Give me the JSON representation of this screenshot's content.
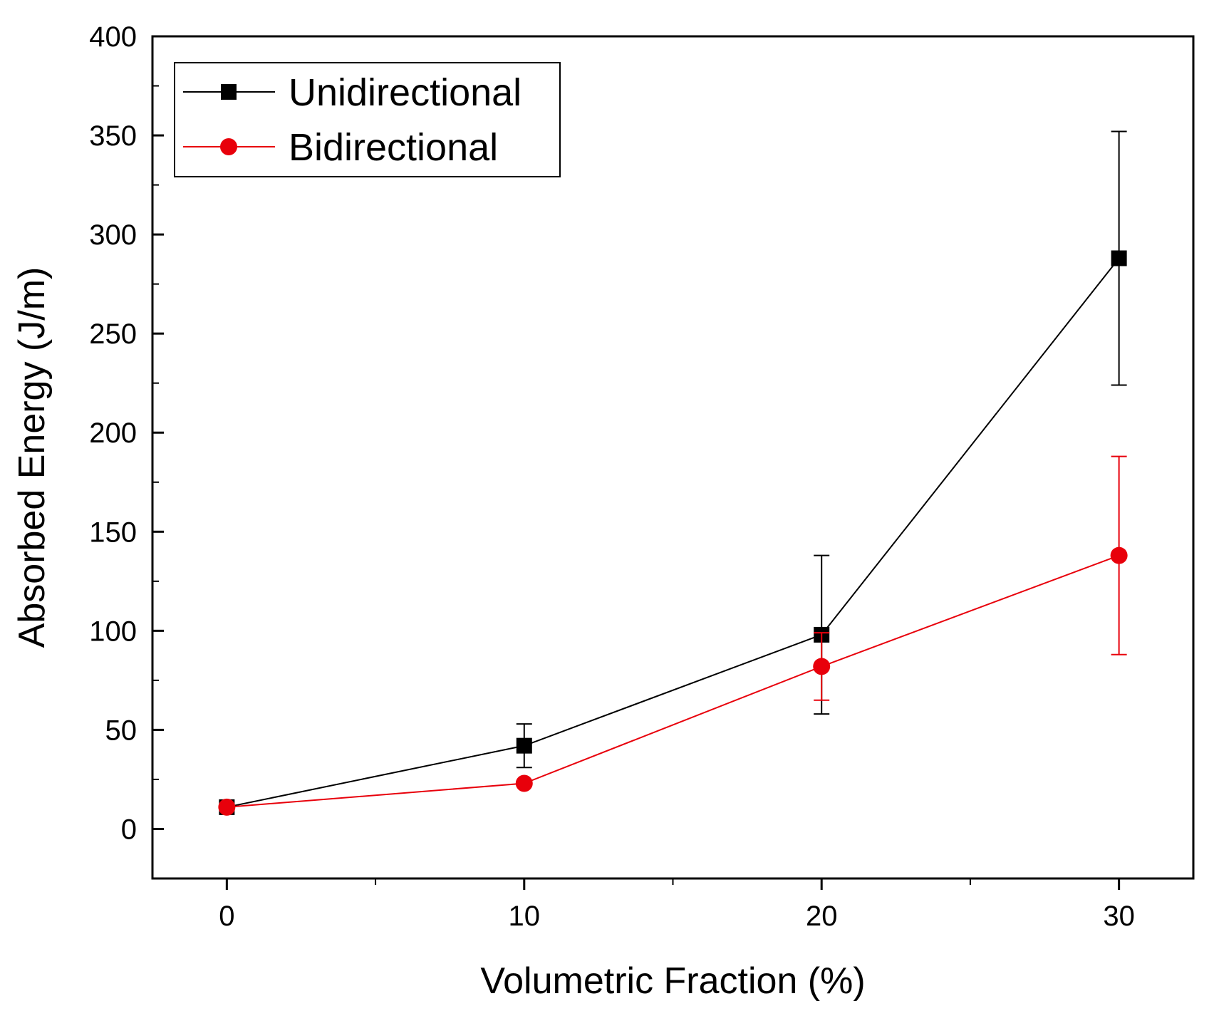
{
  "chart_data": {
    "type": "line",
    "title": "",
    "xlabel": "Volumetric Fraction (%)",
    "ylabel": "Absorbed Energy (J/m)",
    "xlim": [
      -2.5,
      32.5
    ],
    "ylim": [
      -25,
      400
    ],
    "xticks": [
      0,
      10,
      20,
      30
    ],
    "yticks": [
      0,
      50,
      100,
      150,
      200,
      250,
      300,
      350,
      400
    ],
    "legend_position": "top-left",
    "grid": false,
    "series": [
      {
        "name": "Unidirectional",
        "color": "#000000",
        "marker": "square",
        "x": [
          0,
          10,
          20,
          30
        ],
        "y": [
          11,
          42,
          98,
          288
        ],
        "error": [
          [
            0,
            0
          ],
          [
            11,
            11
          ],
          [
            40,
            40
          ],
          [
            64,
            64
          ]
        ]
      },
      {
        "name": "Bidirectional",
        "color": "#e8000b",
        "marker": "circle",
        "x": [
          0,
          10,
          20,
          30
        ],
        "y": [
          11,
          23,
          82,
          138
        ],
        "error": [
          [
            0,
            0
          ],
          [
            0,
            0
          ],
          [
            17,
            17
          ],
          [
            50,
            50
          ]
        ]
      }
    ]
  }
}
